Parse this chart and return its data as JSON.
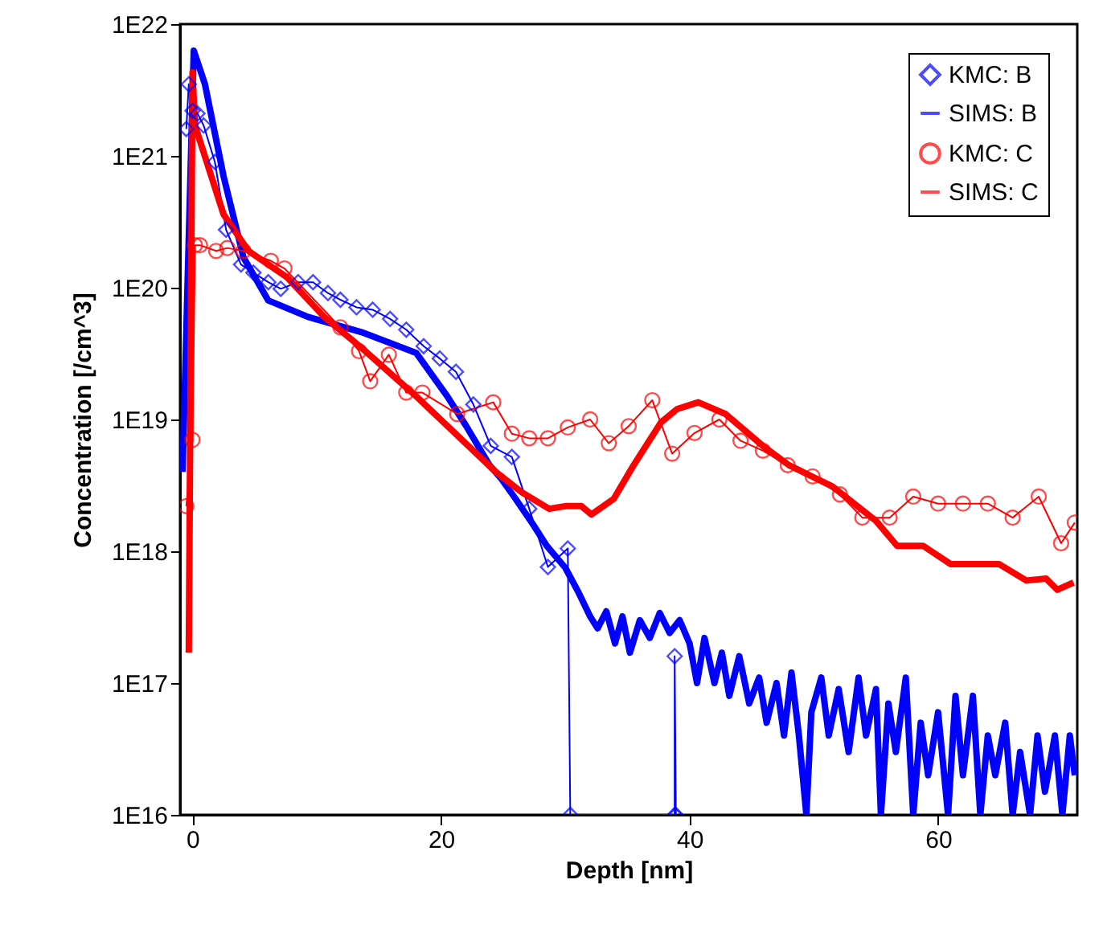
{
  "chart_data": {
    "type": "line",
    "xlabel": "Depth [nm]",
    "ylabel": "Concentration [/cm^3]",
    "log": "y",
    "grid": false,
    "legend": "top right",
    "xlim": [
      -1,
      71.2
    ],
    "xticks": [
      0,
      20,
      40,
      60
    ],
    "ylim": [
      1e+16,
      1e+22
    ],
    "yticks": [
      {
        "value": 1e+16,
        "label": "1E16"
      },
      {
        "value": 1e+17,
        "label": "1E17"
      },
      {
        "value": 1e+18,
        "label": "1E18"
      },
      {
        "value": 1e+19,
        "label": "1E19"
      },
      {
        "value": 1e+20,
        "label": "1E20"
      },
      {
        "value": 1e+21,
        "label": "1E21"
      },
      {
        "value": 1e+22,
        "label": "1E22"
      }
    ],
    "series": [
      {
        "name": "KMC: B",
        "marker": "diamond",
        "color": "#0000ff",
        "x": [
          -0.5,
          -0.3,
          0,
          0.4,
          0.9,
          1.8,
          2.7,
          3.9,
          4.9,
          6.1,
          7.1,
          8.5,
          9.7,
          10.9,
          11.9,
          13.2,
          14.5,
          15.9,
          17.2,
          18.6,
          19.9,
          21.2,
          22.6,
          24,
          25.7,
          27.1,
          28.6,
          30.2,
          30.4,
          38.8,
          38.8,
          38.9
        ],
        "values": [
          1.6e+21,
          3.5e+21,
          2.2e+21,
          2.1e+21,
          1.7e+21,
          9e+20,
          2.75e+20,
          1.5e+20,
          1.3e+20,
          1.1e+20,
          9.8e+19,
          1.1e+20,
          1.1e+20,
          9.1e+19,
          8.1e+19,
          7.1e+19,
          6.8e+19,
          5.8e+19,
          4.8e+19,
          3.6e+19,
          2.9e+19,
          2.3e+19,
          1.3e+19,
          6.3e+18,
          5.2e+18,
          2.1e+18,
          7.6e+17,
          1.05e+18,
          1e+16,
          1e+16,
          1.6e+17,
          1e+16
        ]
      },
      {
        "name": "SIMS: B",
        "marker": "none",
        "color": "#0000ff",
        "x": [
          -0.8,
          0.1,
          1,
          2.5,
          4.1,
          6.1,
          9.3,
          13.6,
          18,
          20.5,
          22,
          23.9,
          24.8,
          26,
          27.4,
          28.5,
          30,
          31,
          32,
          32.6,
          33.3,
          34,
          34.6,
          35.2,
          36,
          36.8,
          37.6,
          38.4,
          39.2,
          40,
          40.6,
          41.2,
          42,
          42.6,
          43.2,
          44,
          44.8,
          45.6,
          46.2,
          47,
          47.6,
          48.2,
          48.8,
          49.4,
          49.8,
          50.6,
          51.2,
          52,
          52.8,
          53.6,
          54.2,
          55,
          55.4,
          56,
          56.6,
          57.4,
          58,
          58.6,
          59.2,
          60,
          60.8,
          61.4,
          62,
          62.8,
          63.4,
          64,
          64.6,
          65.4,
          66,
          66.6,
          67.4,
          68,
          68.6,
          69.4,
          70,
          70.6,
          71
        ],
        "values": [
          4e+18,
          6.3e+21,
          3.5e+21,
          7e+20,
          1.7e+20,
          8e+19,
          6e+19,
          4.6e+19,
          3.2e+19,
          1.5e+19,
          9e+18,
          4.5e+18,
          3.6e+18,
          2.5e+18,
          1.6e+18,
          1.1e+18,
          7.5e+17,
          5e+17,
          3.2e+17,
          2.6e+17,
          3.5e+17,
          2e+17,
          3.2e+17,
          1.7e+17,
          3e+17,
          2.2e+17,
          3.4e+17,
          2.4e+17,
          3e+17,
          2e+17,
          1e+17,
          2.2e+17,
          1e+17,
          1.7e+17,
          8e+16,
          1.6e+17,
          7e+16,
          1.1e+17,
          5e+16,
          1e+17,
          4e+16,
          1.2e+17,
          4e+16,
          1e+16,
          6e+16,
          1.1e+17,
          4e+16,
          9e+16,
          3e+16,
          1.1e+17,
          4e+16,
          9e+16,
          1e+16,
          7e+16,
          3e+16,
          1.1e+17,
          1e+16,
          5e+16,
          2e+16,
          6e+16,
          1e+16,
          8e+16,
          2e+16,
          8e+16,
          1e+16,
          4e+16,
          2e+16,
          5e+16,
          1e+16,
          3e+16,
          1e+16,
          4e+16,
          1.5e+16,
          4e+16,
          1e+16,
          4e+16,
          2e+16
        ]
      },
      {
        "name": "KMC: C",
        "marker": "circle",
        "color": "#ff0000",
        "x": [
          -0.5,
          0,
          0.2,
          0.6,
          1.9,
          2.8,
          4.1,
          6.3,
          7.4,
          11.9,
          13.4,
          14.3,
          15.8,
          17.2,
          18.5,
          21.3,
          24.2,
          25.7,
          27.1,
          28.6,
          30.2,
          32,
          33.5,
          35.1,
          37,
          38.6,
          40.4,
          42.4,
          44.1,
          45.9,
          47.9,
          49.9,
          52.1,
          53.9,
          56.1,
          58,
          60,
          62,
          64,
          66,
          68.1,
          69.9,
          71
        ],
        "values": [
          2.2e+18,
          7e+18,
          2.1e+20,
          2.1e+20,
          1.9e+20,
          2e+20,
          1.9e+20,
          1.6e+20,
          1.4e+20,
          5e+19,
          3.3e+19,
          1.95e+19,
          3.1e+19,
          1.6e+19,
          1.6e+19,
          1.1e+19,
          1.35e+19,
          7.8e+18,
          7.2e+18,
          7.2e+18,
          8.7e+18,
          1e+19,
          6.6e+18,
          8.9e+18,
          1.4e+19,
          5.5e+18,
          7.9e+18,
          1e+19,
          6.9e+18,
          5.8e+18,
          4.5e+18,
          3.7e+18,
          2.7e+18,
          1.8e+18,
          1.8e+18,
          2.6e+18,
          2.3e+18,
          2.3e+18,
          2.3e+18,
          1.8e+18,
          2.6e+18,
          1.15e+18,
          1.65e+18
        ]
      },
      {
        "name": "SIMS: C",
        "marker": "none",
        "color": "#ff0000",
        "x": [
          -0.3,
          0,
          0.2,
          2.5,
          4.5,
          7.6,
          10.6,
          13.6,
          18,
          22.2,
          24.4,
          26.5,
          28.7,
          30,
          31.3,
          32.1,
          33.9,
          35.5,
          37.7,
          39,
          40.7,
          42.9,
          45.9,
          48,
          51.5,
          55,
          56.7,
          58.8,
          61,
          63.2,
          64.9,
          67.1,
          68.7,
          69.6,
          70.9
        ],
        "values": [
          1.7e+17,
          4.3e+21,
          1.7e+21,
          3.6e+20,
          1.9e+20,
          1.2e+20,
          6e+19,
          3.5e+19,
          1.5e+19,
          6.3e+18,
          4e+18,
          2.8e+18,
          2.1e+18,
          2.2e+18,
          2.2e+18,
          1.9e+18,
          2.5e+18,
          4.5e+18,
          9.5e+18,
          1.2e+19,
          1.35e+19,
          1.1e+19,
          6.3e+18,
          4.5e+18,
          3.1e+18,
          1.7e+18,
          1.1e+18,
          1.1e+18,
          8e+17,
          8e+17,
          8e+17,
          6e+17,
          6.2e+17,
          5.1e+17,
          5.8e+17
        ]
      }
    ]
  }
}
